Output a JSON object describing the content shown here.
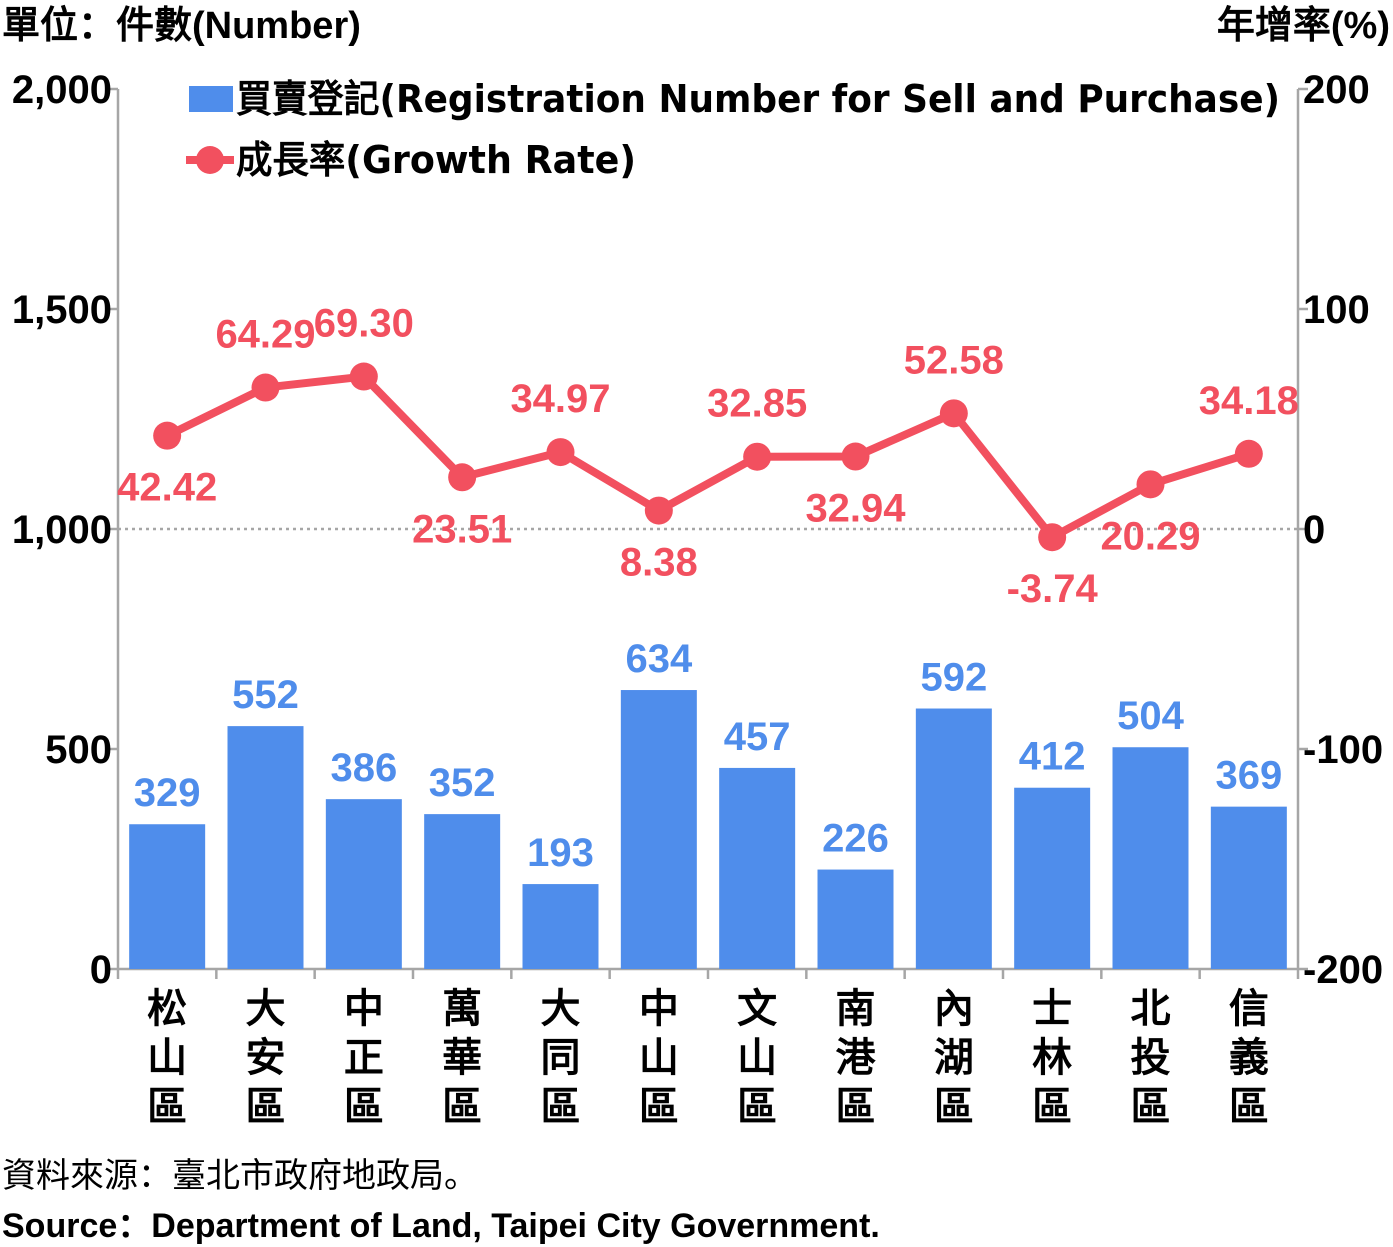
{
  "units": {
    "left": "單位：件數(Number)",
    "right": "年增率(%)"
  },
  "source": {
    "zh": "資料來源：臺北市政府地政局。",
    "en": "Source：Department of Land, Taipei City Government."
  },
  "colors": {
    "bar": "#4f8deb",
    "line": "#f2505f",
    "axis": "#a6a6a6",
    "zero_line": "#a6a6a6",
    "text": "#000000"
  },
  "chart_data": {
    "type": "bar",
    "categories": [
      "松山區",
      "大安區",
      "中正區",
      "萬華區",
      "大同區",
      "中山區",
      "文山區",
      "南港區",
      "內湖區",
      "士林區",
      "北投區",
      "信義區"
    ],
    "series": [
      {
        "name": "買賣登記(Registration Number for Sell and Purchase)",
        "type": "bar",
        "axis": "left",
        "values": [
          329,
          552,
          386,
          352,
          193,
          634,
          457,
          226,
          592,
          412,
          504,
          369
        ],
        "labels": [
          "329",
          "552",
          "386",
          "352",
          "193",
          "634",
          "457",
          "226",
          "592",
          "412",
          "504",
          "369"
        ]
      },
      {
        "name": "成長率(Growth Rate)",
        "type": "line",
        "axis": "right",
        "values": [
          42.42,
          64.29,
          69.3,
          23.51,
          34.97,
          8.38,
          32.85,
          32.94,
          52.58,
          -3.74,
          20.29,
          34.18
        ],
        "labels": [
          "42.42",
          "64.29",
          "69.30",
          "23.51",
          "34.97",
          "8.38",
          "32.85",
          "32.94",
          "52.58",
          "-3.74",
          "20.29",
          "34.18"
        ],
        "label_position": [
          "below",
          "above",
          "above",
          "below",
          "above",
          "below",
          "above",
          "below",
          "above",
          "below",
          "below",
          "above"
        ]
      }
    ],
    "y_left": {
      "range": [
        0,
        2000
      ],
      "ticks": [
        0,
        500,
        1000,
        1500,
        2000
      ],
      "tick_labels": [
        "0",
        "500",
        "1,000",
        "1,500",
        "2,000"
      ]
    },
    "y_right": {
      "range": [
        -200,
        200
      ],
      "ticks": [
        -200,
        -100,
        0,
        100,
        200
      ],
      "tick_labels": [
        "-200",
        "-100",
        "0",
        "100",
        "200"
      ]
    },
    "zero_reference_line": "dotted",
    "legend_position": "top-left",
    "grid": false
  }
}
